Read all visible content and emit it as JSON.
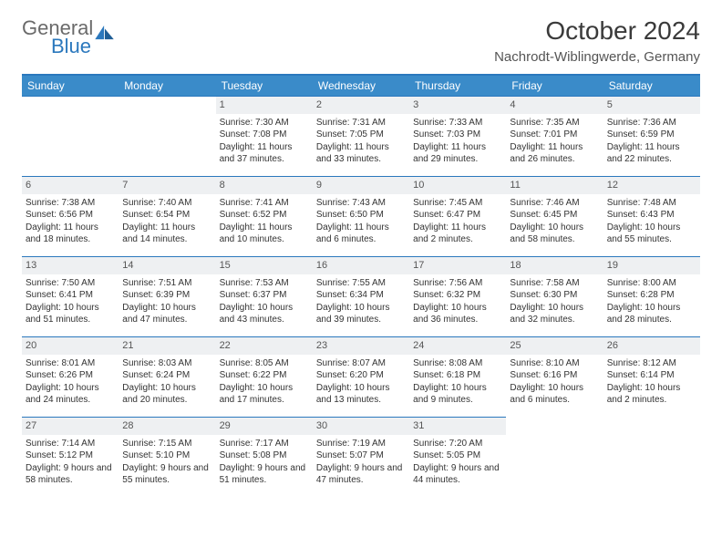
{
  "brand": {
    "word1": "General",
    "word2": "Blue"
  },
  "title": "October 2024",
  "location": "Nachrodt-Wiblingwerde, Germany",
  "colors": {
    "header_bg": "#3a8bc9",
    "header_text": "#ffffff",
    "rule": "#2b78bd",
    "daynum_bg": "#eef0f2",
    "text": "#333333",
    "logo_gray": "#6a6a6a",
    "logo_blue": "#2b78bd"
  },
  "day_names": [
    "Sunday",
    "Monday",
    "Tuesday",
    "Wednesday",
    "Thursday",
    "Friday",
    "Saturday"
  ],
  "leading_blanks": 2,
  "days": [
    {
      "n": 1,
      "sunrise": "7:30 AM",
      "sunset": "7:08 PM",
      "daylight": "11 hours and 37 minutes."
    },
    {
      "n": 2,
      "sunrise": "7:31 AM",
      "sunset": "7:05 PM",
      "daylight": "11 hours and 33 minutes."
    },
    {
      "n": 3,
      "sunrise": "7:33 AM",
      "sunset": "7:03 PM",
      "daylight": "11 hours and 29 minutes."
    },
    {
      "n": 4,
      "sunrise": "7:35 AM",
      "sunset": "7:01 PM",
      "daylight": "11 hours and 26 minutes."
    },
    {
      "n": 5,
      "sunrise": "7:36 AM",
      "sunset": "6:59 PM",
      "daylight": "11 hours and 22 minutes."
    },
    {
      "n": 6,
      "sunrise": "7:38 AM",
      "sunset": "6:56 PM",
      "daylight": "11 hours and 18 minutes."
    },
    {
      "n": 7,
      "sunrise": "7:40 AM",
      "sunset": "6:54 PM",
      "daylight": "11 hours and 14 minutes."
    },
    {
      "n": 8,
      "sunrise": "7:41 AM",
      "sunset": "6:52 PM",
      "daylight": "11 hours and 10 minutes."
    },
    {
      "n": 9,
      "sunrise": "7:43 AM",
      "sunset": "6:50 PM",
      "daylight": "11 hours and 6 minutes."
    },
    {
      "n": 10,
      "sunrise": "7:45 AM",
      "sunset": "6:47 PM",
      "daylight": "11 hours and 2 minutes."
    },
    {
      "n": 11,
      "sunrise": "7:46 AM",
      "sunset": "6:45 PM",
      "daylight": "10 hours and 58 minutes."
    },
    {
      "n": 12,
      "sunrise": "7:48 AM",
      "sunset": "6:43 PM",
      "daylight": "10 hours and 55 minutes."
    },
    {
      "n": 13,
      "sunrise": "7:50 AM",
      "sunset": "6:41 PM",
      "daylight": "10 hours and 51 minutes."
    },
    {
      "n": 14,
      "sunrise": "7:51 AM",
      "sunset": "6:39 PM",
      "daylight": "10 hours and 47 minutes."
    },
    {
      "n": 15,
      "sunrise": "7:53 AM",
      "sunset": "6:37 PM",
      "daylight": "10 hours and 43 minutes."
    },
    {
      "n": 16,
      "sunrise": "7:55 AM",
      "sunset": "6:34 PM",
      "daylight": "10 hours and 39 minutes."
    },
    {
      "n": 17,
      "sunrise": "7:56 AM",
      "sunset": "6:32 PM",
      "daylight": "10 hours and 36 minutes."
    },
    {
      "n": 18,
      "sunrise": "7:58 AM",
      "sunset": "6:30 PM",
      "daylight": "10 hours and 32 minutes."
    },
    {
      "n": 19,
      "sunrise": "8:00 AM",
      "sunset": "6:28 PM",
      "daylight": "10 hours and 28 minutes."
    },
    {
      "n": 20,
      "sunrise": "8:01 AM",
      "sunset": "6:26 PM",
      "daylight": "10 hours and 24 minutes."
    },
    {
      "n": 21,
      "sunrise": "8:03 AM",
      "sunset": "6:24 PM",
      "daylight": "10 hours and 20 minutes."
    },
    {
      "n": 22,
      "sunrise": "8:05 AM",
      "sunset": "6:22 PM",
      "daylight": "10 hours and 17 minutes."
    },
    {
      "n": 23,
      "sunrise": "8:07 AM",
      "sunset": "6:20 PM",
      "daylight": "10 hours and 13 minutes."
    },
    {
      "n": 24,
      "sunrise": "8:08 AM",
      "sunset": "6:18 PM",
      "daylight": "10 hours and 9 minutes."
    },
    {
      "n": 25,
      "sunrise": "8:10 AM",
      "sunset": "6:16 PM",
      "daylight": "10 hours and 6 minutes."
    },
    {
      "n": 26,
      "sunrise": "8:12 AM",
      "sunset": "6:14 PM",
      "daylight": "10 hours and 2 minutes."
    },
    {
      "n": 27,
      "sunrise": "7:14 AM",
      "sunset": "5:12 PM",
      "daylight": "9 hours and 58 minutes."
    },
    {
      "n": 28,
      "sunrise": "7:15 AM",
      "sunset": "5:10 PM",
      "daylight": "9 hours and 55 minutes."
    },
    {
      "n": 29,
      "sunrise": "7:17 AM",
      "sunset": "5:08 PM",
      "daylight": "9 hours and 51 minutes."
    },
    {
      "n": 30,
      "sunrise": "7:19 AM",
      "sunset": "5:07 PM",
      "daylight": "9 hours and 47 minutes."
    },
    {
      "n": 31,
      "sunrise": "7:20 AM",
      "sunset": "5:05 PM",
      "daylight": "9 hours and 44 minutes."
    }
  ],
  "labels": {
    "sunrise": "Sunrise:",
    "sunset": "Sunset:",
    "daylight": "Daylight:"
  }
}
